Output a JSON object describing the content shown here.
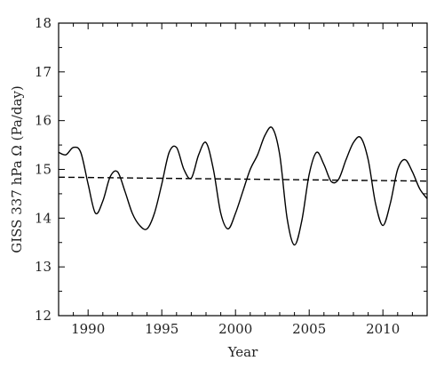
{
  "chart_data": {
    "type": "line",
    "title": "",
    "xlabel": "Year",
    "ylabel": "GISS 337 hPa Ω (Pa/day)",
    "xlim": [
      1988,
      2013
    ],
    "ylim": [
      12,
      18
    ],
    "grid": false,
    "x_ticks": [
      1990,
      1995,
      2000,
      2005,
      2010
    ],
    "y_ticks": [
      12,
      13,
      14,
      15,
      16,
      17,
      18
    ],
    "series": [
      {
        "style": "solid",
        "color": "#000000",
        "x": [
          1988.0,
          1988.5,
          1989.0,
          1989.5,
          1990.0,
          1990.5,
          1991.0,
          1991.5,
          1992.0,
          1992.5,
          1993.0,
          1993.5,
          1994.0,
          1994.5,
          1995.0,
          1995.5,
          1996.0,
          1996.5,
          1997.0,
          1997.5,
          1998.0,
          1998.5,
          1999.0,
          1999.5,
          2000.0,
          2000.5,
          2001.0,
          2001.5,
          2002.0,
          2002.5,
          2003.0,
          2003.5,
          2004.0,
          2004.5,
          2005.0,
          2005.5,
          2006.0,
          2006.5,
          2007.0,
          2007.5,
          2008.0,
          2008.5,
          2009.0,
          2009.5,
          2010.0,
          2010.5,
          2011.0,
          2011.5,
          2012.0,
          2012.5,
          2013.0
        ],
        "values": [
          15.35,
          15.3,
          15.45,
          15.35,
          14.7,
          14.1,
          14.35,
          14.85,
          14.95,
          14.55,
          14.1,
          13.85,
          13.78,
          14.1,
          14.7,
          15.35,
          15.45,
          15.0,
          14.82,
          15.3,
          15.55,
          15.0,
          14.1,
          13.78,
          14.1,
          14.55,
          15.0,
          15.3,
          15.7,
          15.85,
          15.3,
          14.0,
          13.45,
          13.95,
          14.9,
          15.35,
          15.1,
          14.75,
          14.8,
          15.2,
          15.55,
          15.65,
          15.2,
          14.3,
          13.85,
          14.3,
          15.0,
          15.2,
          14.95,
          14.6,
          14.4
        ]
      },
      {
        "style": "dashed",
        "color": "#000000",
        "x": [
          1988.0,
          2013.0
        ],
        "values": [
          14.84,
          14.76
        ]
      }
    ]
  }
}
